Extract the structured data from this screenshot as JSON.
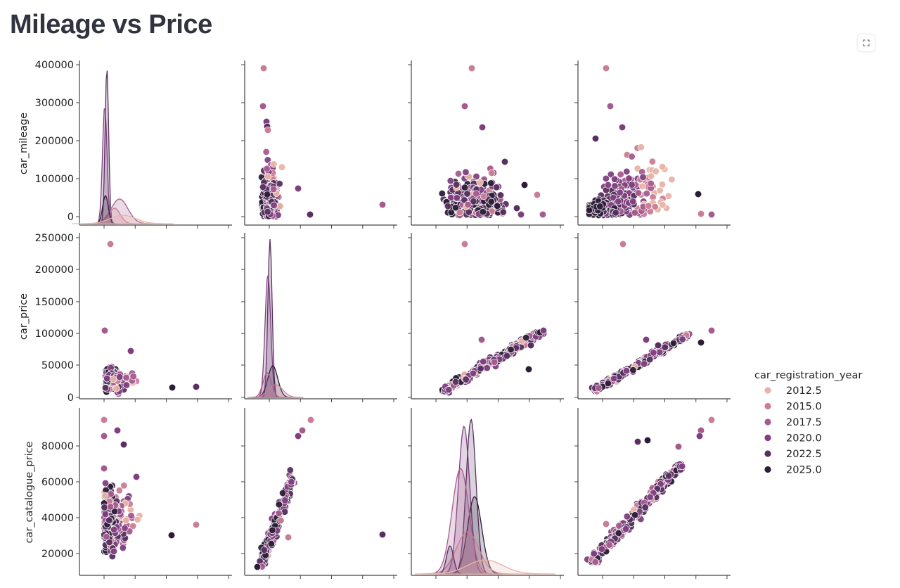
{
  "page": {
    "title": "Mileage vs Price"
  },
  "toolbar": {
    "fullscreen_icon": "expand-icon"
  },
  "chart_data": {
    "type": "scatter",
    "subtype": "pairplot",
    "variables": [
      "car_mileage",
      "car_price",
      "car_catalogue_price",
      "car_registration_year"
    ],
    "row_variables": [
      "car_mileage",
      "car_price",
      "car_catalogue_price"
    ],
    "col_variables": [
      "car_mileage",
      "car_price",
      "car_catalogue_price",
      "car_registration_year"
    ],
    "diagonal": "kde",
    "hue": "car_registration_year",
    "ylabels": [
      "car_mileage",
      "car_price",
      "car_catalogue_price"
    ],
    "yticks": [
      [
        "0",
        "100000",
        "200000",
        "300000",
        "400000"
      ],
      [
        "0",
        "50000",
        "100000",
        "150000",
        "200000",
        "250000"
      ],
      [
        "20000",
        "40000",
        "60000",
        "80000"
      ]
    ],
    "ylims": [
      [
        -20000,
        410000
      ],
      [
        -5000,
        255000
      ],
      [
        10000,
        98000
      ]
    ],
    "legend": {
      "title": "car_registration_year",
      "placement": "right",
      "entries": [
        {
          "label": "2012.5",
          "color": "#e8b3a7"
        },
        {
          "label": "2015.0",
          "color": "#ca7d96"
        },
        {
          "label": "2017.5",
          "color": "#a55b8e"
        },
        {
          "label": "2020.0",
          "color": "#804080"
        },
        {
          "label": "2022.5",
          "color": "#57305f"
        },
        {
          "label": "2025.0",
          "color": "#2b1d37"
        }
      ]
    },
    "highlighted_points": {
      "mileage_max": {
        "car_mileage": 390000
      },
      "price_max": {
        "car_price": 239000
      },
      "catalogue_price_max": {
        "car_catalogue_price": 94500
      }
    }
  }
}
